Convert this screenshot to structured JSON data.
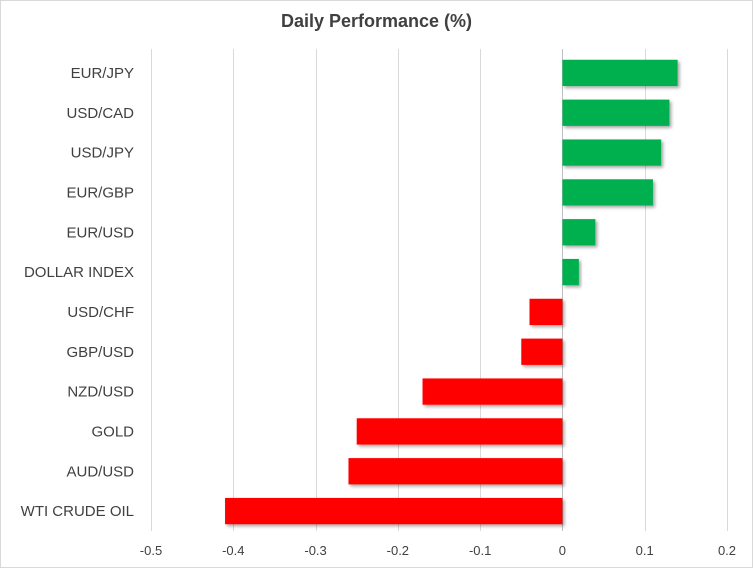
{
  "chart_data": {
    "type": "bar",
    "orientation": "horizontal",
    "title": "Daily Performance  (%)",
    "xlabel": "",
    "ylabel": "",
    "xlim": [
      -0.5,
      0.2
    ],
    "xticks": [
      -0.5,
      -0.4,
      -0.3,
      -0.2,
      -0.1,
      0,
      0.1,
      0.2
    ],
    "grid": true,
    "legend": "none",
    "categories": [
      "EUR/JPY",
      "USD/CAD",
      "USD/JPY",
      "EUR/GBP",
      "EUR/USD",
      "DOLLAR INDEX",
      "USD/CHF",
      "GBP/USD",
      "NZD/USD",
      "GOLD",
      "AUD/USD",
      "WTI CRUDE OIL"
    ],
    "values": [
      0.14,
      0.13,
      0.12,
      0.11,
      0.04,
      0.02,
      -0.04,
      -0.05,
      -0.17,
      -0.25,
      -0.26,
      -0.41
    ],
    "colors": {
      "positive": "#00b050",
      "negative": "#ff0000"
    }
  }
}
